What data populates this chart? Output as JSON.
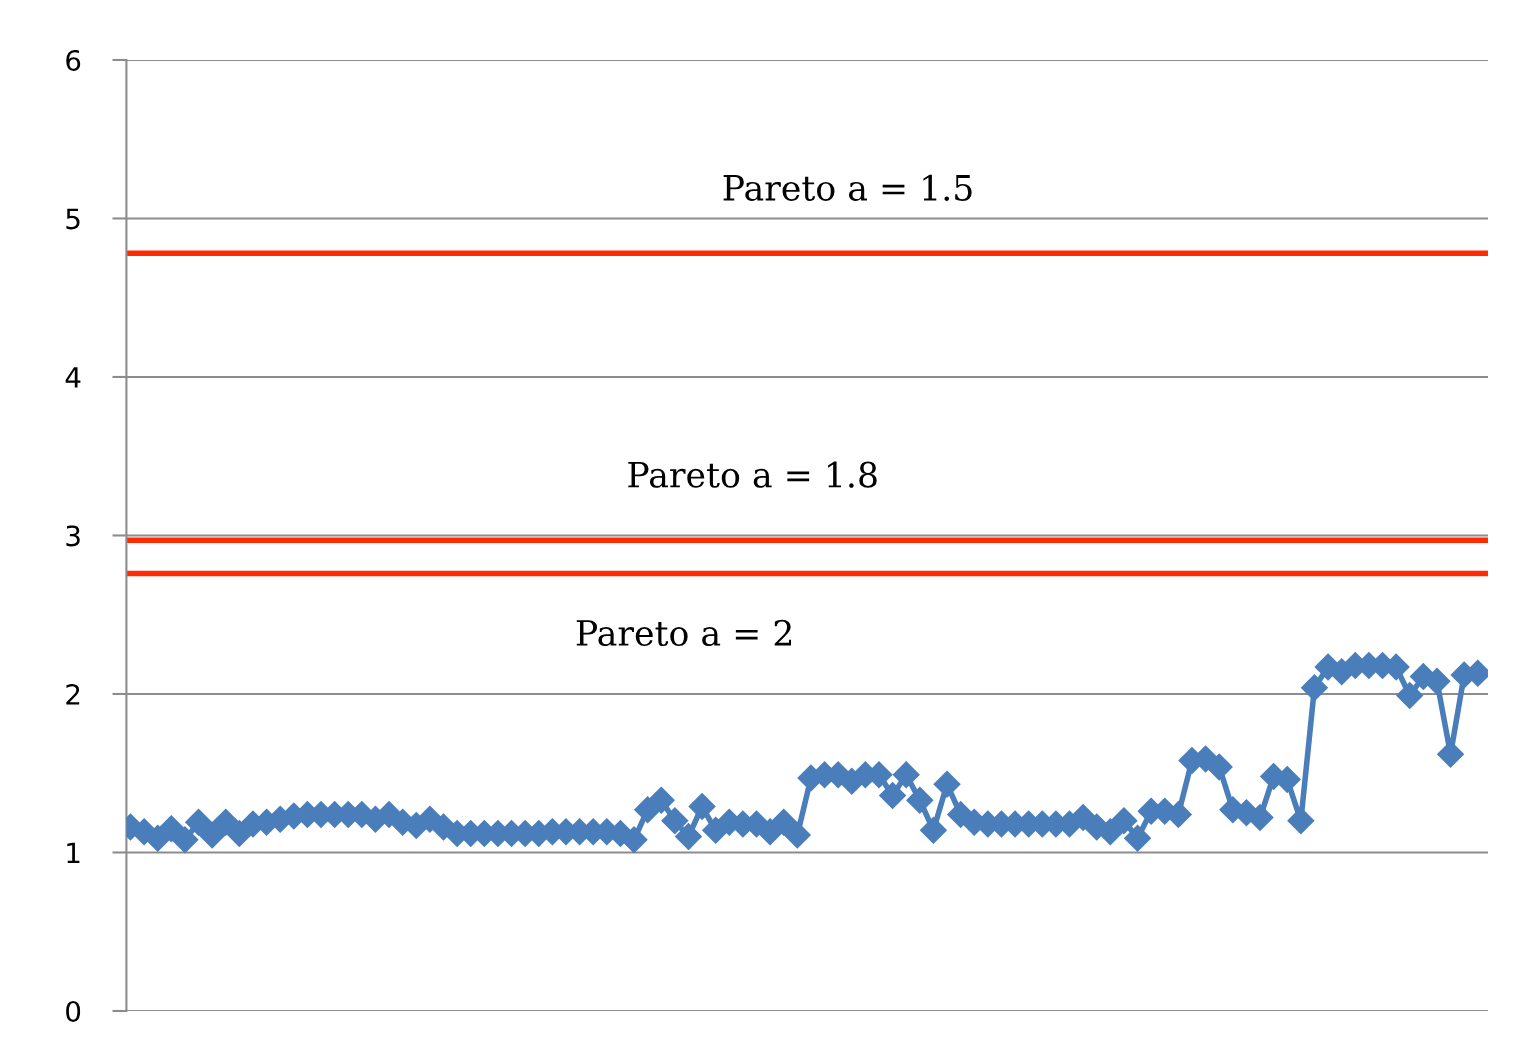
{
  "chart_data": {
    "type": "line",
    "categories": [
      null,
      null,
      null,
      null,
      null,
      null,
      null,
      null,
      null,
      null,
      null,
      null,
      null,
      null,
      null,
      null,
      null,
      null,
      null,
      null,
      null,
      null,
      null,
      null,
      null,
      null,
      null,
      null,
      null,
      null,
      null,
      null,
      null,
      null,
      null,
      null,
      null,
      null,
      null,
      null,
      null,
      null,
      null,
      null,
      null,
      null,
      null,
      null,
      null,
      null,
      null,
      null,
      null,
      null,
      null,
      null,
      null,
      null,
      null,
      null,
      null,
      null,
      null,
      null,
      null,
      null,
      null,
      null,
      null,
      null,
      null,
      null,
      null,
      null,
      null,
      null,
      null,
      null,
      null,
      null,
      null,
      null,
      null,
      null,
      null,
      null,
      null,
      null,
      null,
      null,
      null,
      null,
      null,
      null,
      null,
      null,
      null,
      null,
      null,
      null
    ],
    "series": [
      {
        "color": "#4a7ebb",
        "values": [
          1.16,
          1.13,
          1.09,
          1.15,
          1.08,
          1.19,
          1.11,
          1.19,
          1.12,
          1.18,
          1.19,
          1.21,
          1.23,
          1.24,
          1.24,
          1.24,
          1.24,
          1.24,
          1.21,
          1.24,
          1.19,
          1.17,
          1.21,
          1.16,
          1.12,
          1.12,
          1.12,
          1.12,
          1.12,
          1.12,
          1.12,
          1.13,
          1.13,
          1.13,
          1.13,
          1.13,
          1.12,
          1.08,
          1.27,
          1.33,
          1.2,
          1.1,
          1.29,
          1.14,
          1.19,
          1.18,
          1.18,
          1.13,
          1.19,
          1.11,
          1.47,
          1.49,
          1.49,
          1.45,
          1.49,
          1.49,
          1.36,
          1.49,
          1.33,
          1.14,
          1.43,
          1.24,
          1.19,
          1.18,
          1.18,
          1.18,
          1.18,
          1.18,
          1.18,
          1.18,
          1.22,
          1.16,
          1.13,
          1.2,
          1.09,
          1.26,
          1.26,
          1.24,
          1.58,
          1.59,
          1.54,
          1.27,
          1.25,
          1.22,
          1.48,
          1.46,
          1.2,
          2.04,
          2.17,
          2.14,
          2.18,
          2.18,
          2.18,
          2.17,
          1.99,
          2.11,
          2.08,
          1.62,
          2.12,
          2.13
        ]
      }
    ],
    "marker": "diamond",
    "line_style": "solid",
    "ylim": [
      0,
      6
    ],
    "yticks": [
      0,
      1,
      2,
      3,
      4,
      5,
      6
    ],
    "grid": "y",
    "tick_labels": "y",
    "ref_lines": [
      {
        "axis": "y",
        "value": 4.78,
        "color": "#ff2a00"
      },
      {
        "axis": "y",
        "value": 2.97,
        "color": "#ff2a00"
      },
      {
        "axis": "y",
        "value": 2.76,
        "color": "#ff2a00"
      }
    ],
    "annotations": [
      {
        "text": "Pareto a = 1.5",
        "y": 4.78
      },
      {
        "text": "Pareto a = 1.8",
        "y": 2.97
      },
      {
        "text": "Pareto a = 2",
        "y": 2.76
      }
    ]
  }
}
